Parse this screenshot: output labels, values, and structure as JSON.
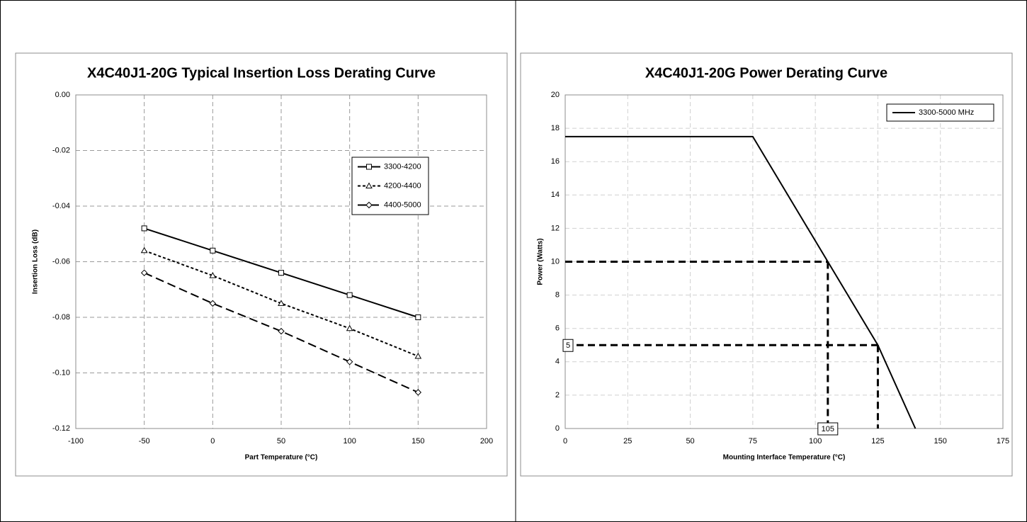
{
  "chart_data": [
    {
      "type": "line",
      "title": "X4C40J1-20G Typical Insertion Loss Derating Curve",
      "x_label": "Part Temperature (°C)",
      "y_label": "Insertion Loss (dB)",
      "x": [
        -50,
        0,
        50,
        100,
        150
      ],
      "series": [
        {
          "name": "3300-4200",
          "color": "#000000",
          "marker": "square",
          "dash": "solid",
          "values": [
            -0.048,
            -0.056,
            -0.064,
            -0.072,
            -0.08
          ]
        },
        {
          "name": "4200-4400",
          "color": "#000000",
          "marker": "triangle",
          "dash": "dotted",
          "values": [
            -0.056,
            -0.065,
            -0.075,
            -0.084,
            -0.094
          ]
        },
        {
          "name": "4400-5000",
          "color": "#000000",
          "marker": "diamond",
          "dash": "dashed",
          "values": [
            -0.064,
            -0.075,
            -0.085,
            -0.096,
            -0.107
          ]
        }
      ],
      "xlim": [
        -100,
        200
      ],
      "xticks": [
        -100,
        -50,
        0,
        50,
        100,
        150,
        200
      ],
      "ylim": [
        -0.12,
        0
      ],
      "yticks": [
        {
          "value": 0,
          "label": "0.00"
        },
        -0.02,
        -0.04,
        -0.06,
        -0.08,
        {
          "value": -0.1,
          "label": "-0.10"
        },
        -0.12
      ],
      "grid": true,
      "legend": "right"
    },
    {
      "type": "line",
      "title": "X4C40J1-20G Power Derating Curve",
      "x_label": "Mounting Interface Temperature (°C)",
      "y_label": "Power (Watts)",
      "x": [
        0,
        75,
        125,
        140
      ],
      "series": [
        {
          "name": "3300-5000 MHz",
          "color": "#000000",
          "marker": "none",
          "dash": "solid",
          "values": [
            17.5,
            17.5,
            5,
            0
          ]
        }
      ],
      "xlim": [
        0,
        175
      ],
      "xticks": [
        0,
        25,
        50,
        75,
        100,
        125,
        150,
        175
      ],
      "ylim": [
        0,
        20
      ],
      "yticks": [
        0,
        2,
        4,
        6,
        8,
        10,
        12,
        14,
        16,
        18,
        20
      ],
      "grid": true,
      "legend": "upper right",
      "reference_lines": [
        {
          "x": 105,
          "y": 10,
          "x_label": "105"
        },
        {
          "x": 125,
          "y": 5,
          "y_label": "5"
        }
      ]
    }
  ]
}
